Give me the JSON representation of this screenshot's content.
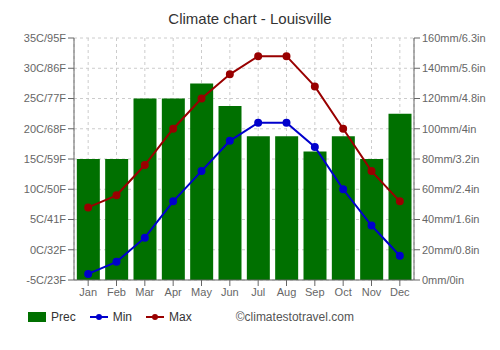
{
  "chart_data": {
    "type": "combo",
    "title": "Climate chart - Louisville",
    "categories": [
      "Jan",
      "Feb",
      "Mar",
      "Apr",
      "May",
      "Jun",
      "Jul",
      "Aug",
      "Sep",
      "Oct",
      "Nov",
      "Dec"
    ],
    "series": [
      {
        "name": "Prec",
        "type": "bar",
        "color": "#007000",
        "axis": "y2",
        "values": [
          80,
          80,
          120,
          120,
          130,
          115,
          95,
          95,
          85,
          95,
          80,
          110
        ]
      },
      {
        "name": "Min",
        "type": "line",
        "color": "#0000cc",
        "marker": "circle",
        "values": [
          -4,
          -2,
          2,
          8,
          13,
          18,
          21,
          21,
          17,
          10,
          4,
          -1
        ]
      },
      {
        "name": "Max",
        "type": "line",
        "color": "#990000",
        "marker": "circle",
        "values": [
          7,
          9,
          14,
          20,
          25,
          29,
          32,
          32,
          27,
          20,
          13,
          8
        ]
      }
    ],
    "ylim": [
      -5,
      35
    ],
    "yticks": [
      {
        "value": -5,
        "label": "-5C/23F"
      },
      {
        "value": 0,
        "label": "0C/32F"
      },
      {
        "value": 5,
        "label": "5C/41F"
      },
      {
        "value": 10,
        "label": "10C/50F"
      },
      {
        "value": 15,
        "label": "15C/59F"
      },
      {
        "value": 20,
        "label": "20C/68F"
      },
      {
        "value": 25,
        "label": "25C/77F"
      },
      {
        "value": 30,
        "label": "30C/86F"
      },
      {
        "value": 35,
        "label": "35C/95F"
      }
    ],
    "y2lim": [
      0,
      160
    ],
    "y2ticks": [
      {
        "value": 0,
        "label": "0mm/0in"
      },
      {
        "value": 20,
        "label": "20mm/0.8in"
      },
      {
        "value": 40,
        "label": "40mm/1.6in"
      },
      {
        "value": 60,
        "label": "60mm/2.4in"
      },
      {
        "value": 80,
        "label": "80mm/3.2in"
      },
      {
        "value": 100,
        "label": "100mm/4in"
      },
      {
        "value": 120,
        "label": "120mm/4.8in"
      },
      {
        "value": 140,
        "label": "140mm/5.6in"
      },
      {
        "value": 160,
        "label": "160mm/6.3in"
      }
    ],
    "grid": true,
    "legend": "bottom",
    "annotations": [
      "©climatestotravel.com"
    ]
  }
}
